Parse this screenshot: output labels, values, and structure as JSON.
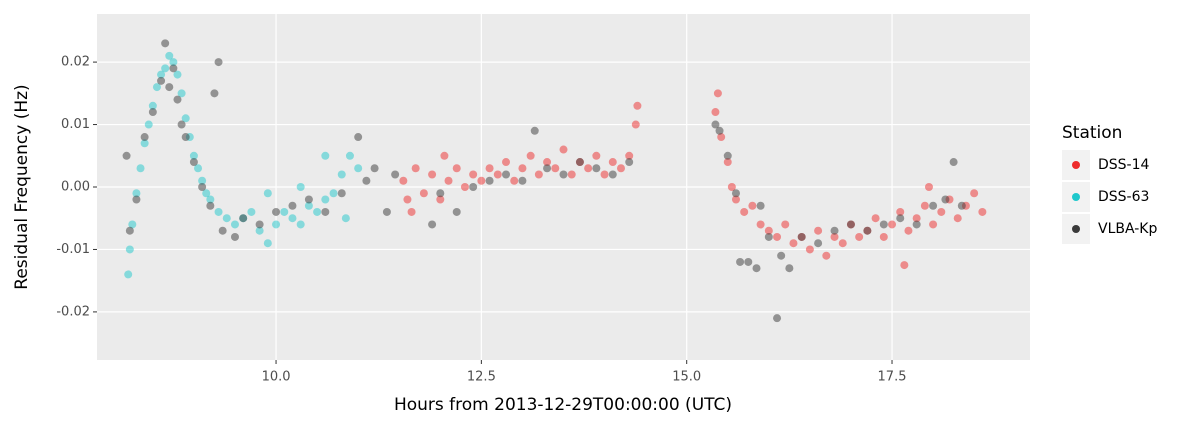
{
  "chart_data": {
    "type": "scatter",
    "x_label": "Hours from 2013-12-29T00:00:00 (UTC)",
    "y_label": "Residual Frequency (Hz)",
    "legend_title": "Station",
    "legend_position": "right",
    "grid": true,
    "xlim": [
      7.82,
      19.18
    ],
    "ylim": [
      -0.0277,
      0.0277
    ],
    "xticks": [
      {
        "value": 10,
        "label": "10.0"
      },
      12.5,
      {
        "value": 15,
        "label": "15.0"
      },
      17.5
    ],
    "yticks": [
      -0.02,
      -0.01,
      {
        "value": 0,
        "label": "0.00"
      },
      0.01,
      0.02
    ],
    "series": [
      {
        "name": "DSS-14",
        "color": "#ee2c2c",
        "x": [
          11.55,
          11.6,
          11.7,
          11.8,
          11.9,
          12.0,
          12.1,
          12.2,
          12.3,
          12.4,
          12.5,
          12.6,
          12.7,
          12.8,
          12.9,
          13.0,
          13.1,
          13.2,
          13.3,
          13.4,
          13.5,
          13.6,
          13.7,
          13.8,
          13.9,
          14.0,
          14.1,
          14.2,
          14.3,
          14.38,
          14.4,
          11.65,
          12.05,
          15.35,
          15.38,
          15.42,
          15.5,
          15.55,
          15.6,
          15.7,
          15.8,
          15.9,
          16.0,
          16.1,
          16.2,
          16.3,
          16.4,
          16.5,
          16.6,
          16.7,
          16.8,
          16.9,
          17.0,
          17.1,
          17.2,
          17.3,
          17.4,
          17.5,
          17.6,
          17.7,
          17.8,
          17.9,
          18.0,
          18.1,
          18.2,
          18.3,
          18.4,
          18.5,
          18.6,
          17.65,
          17.95
        ],
        "values": [
          0.001,
          -0.002,
          0.003,
          -0.001,
          0.002,
          -0.002,
          0.001,
          0.003,
          0.0,
          0.002,
          0.001,
          0.003,
          0.002,
          0.004,
          0.001,
          0.003,
          0.005,
          0.002,
          0.004,
          0.003,
          0.006,
          0.002,
          0.004,
          0.003,
          0.005,
          0.002,
          0.004,
          0.003,
          0.005,
          0.01,
          0.013,
          -0.004,
          0.005,
          0.012,
          0.015,
          0.008,
          0.004,
          0.0,
          -0.002,
          -0.004,
          -0.003,
          -0.006,
          -0.007,
          -0.008,
          -0.006,
          -0.009,
          -0.008,
          -0.01,
          -0.007,
          -0.011,
          -0.008,
          -0.009,
          -0.006,
          -0.008,
          -0.007,
          -0.005,
          -0.008,
          -0.006,
          -0.004,
          -0.007,
          -0.005,
          -0.003,
          -0.006,
          -0.004,
          -0.002,
          -0.005,
          -0.003,
          -0.001,
          -0.004,
          -0.0125,
          0.0
        ]
      },
      {
        "name": "DSS-63",
        "color": "#1fc8cc",
        "x": [
          8.2,
          8.22,
          8.25,
          8.3,
          8.35,
          8.4,
          8.45,
          8.5,
          8.55,
          8.6,
          8.65,
          8.7,
          8.75,
          8.8,
          8.85,
          8.9,
          8.95,
          9.0,
          9.05,
          9.1,
          9.15,
          9.2,
          9.3,
          9.4,
          9.5,
          9.6,
          9.7,
          9.8,
          9.9,
          10.0,
          10.1,
          10.2,
          10.3,
          10.4,
          10.5,
          10.6,
          10.7,
          10.8,
          10.9,
          11.0,
          10.85,
          10.6,
          10.3,
          9.9
        ],
        "values": [
          -0.014,
          -0.01,
          -0.006,
          -0.001,
          0.003,
          0.007,
          0.01,
          0.013,
          0.016,
          0.018,
          0.019,
          0.021,
          0.02,
          0.018,
          0.015,
          0.011,
          0.008,
          0.005,
          0.003,
          0.001,
          -0.001,
          -0.002,
          -0.004,
          -0.005,
          -0.006,
          -0.005,
          -0.004,
          -0.007,
          -0.009,
          -0.006,
          -0.004,
          -0.005,
          -0.006,
          -0.003,
          -0.004,
          -0.002,
          -0.001,
          0.002,
          0.005,
          0.003,
          -0.005,
          0.005,
          0.0,
          -0.001
        ]
      },
      {
        "name": "VLBA-Kp",
        "color": "#3a3a3a",
        "x": [
          8.18,
          8.22,
          8.3,
          8.4,
          8.5,
          8.6,
          8.65,
          8.7,
          8.75,
          8.8,
          8.85,
          8.9,
          9.0,
          9.1,
          9.2,
          9.3,
          9.25,
          9.35,
          9.5,
          9.6,
          9.8,
          10.0,
          10.2,
          10.4,
          10.6,
          10.8,
          11.0,
          11.1,
          11.2,
          11.35,
          11.45,
          11.9,
          12.0,
          12.2,
          12.4,
          12.6,
          12.8,
          13.0,
          13.15,
          13.3,
          13.5,
          13.7,
          13.9,
          14.1,
          14.3,
          15.35,
          15.4,
          15.5,
          15.6,
          15.65,
          15.75,
          15.85,
          15.9,
          16.0,
          16.1,
          16.15,
          16.25,
          16.4,
          16.6,
          16.8,
          17.0,
          17.2,
          17.4,
          17.6,
          17.8,
          18.0,
          18.15,
          18.25,
          18.35
        ],
        "values": [
          0.005,
          -0.007,
          -0.002,
          0.008,
          0.012,
          0.017,
          0.023,
          0.016,
          0.019,
          0.014,
          0.01,
          0.008,
          0.004,
          0.0,
          -0.003,
          0.02,
          0.015,
          -0.007,
          -0.008,
          -0.005,
          -0.006,
          -0.004,
          -0.003,
          -0.002,
          -0.004,
          -0.001,
          0.008,
          0.001,
          0.003,
          -0.004,
          0.002,
          -0.006,
          -0.001,
          -0.004,
          0.0,
          0.001,
          0.002,
          0.001,
          0.009,
          0.003,
          0.002,
          0.004,
          0.003,
          0.002,
          0.004,
          0.01,
          0.009,
          0.005,
          -0.001,
          -0.012,
          -0.012,
          -0.013,
          -0.003,
          -0.008,
          -0.021,
          -0.011,
          -0.013,
          -0.008,
          -0.009,
          -0.007,
          -0.006,
          -0.007,
          -0.006,
          -0.005,
          -0.006,
          -0.003,
          -0.002,
          0.004,
          -0.003
        ]
      }
    ]
  }
}
